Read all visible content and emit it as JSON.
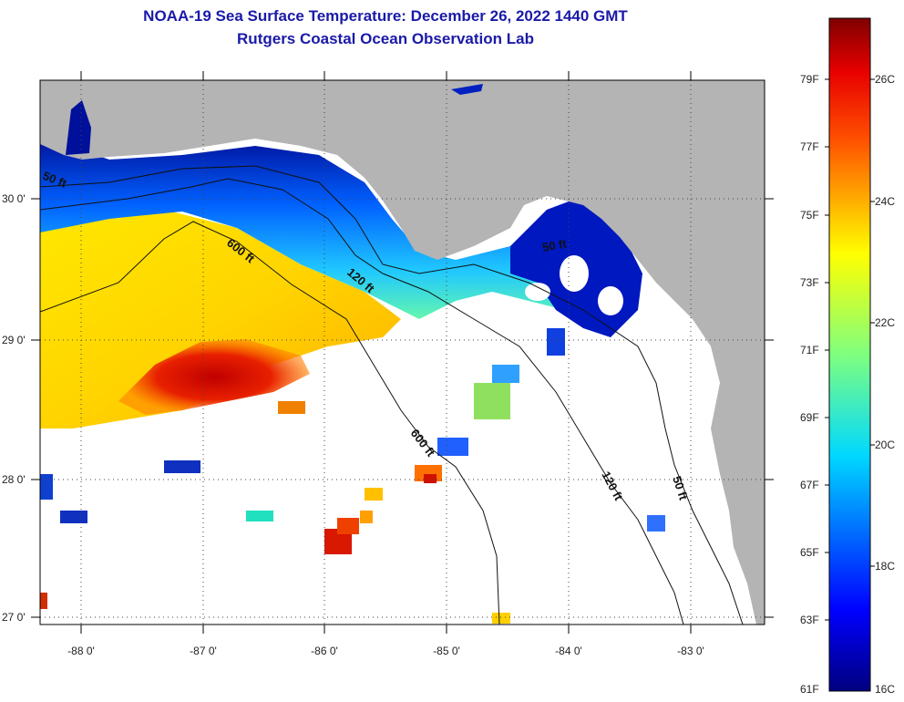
{
  "title": {
    "line1": "NOAA-19 Sea Surface Temperature:  December 26, 2022 1440 GMT",
    "line2": "Rutgers Coastal Ocean Observation Lab"
  },
  "map": {
    "lat_labels": [
      "30 0'",
      "29 0'",
      "28 0'",
      "27 0'"
    ],
    "lon_labels": [
      "-88 0'",
      "-87 0'",
      "-86 0'",
      "-85 0'",
      "-84 0'",
      "-83 0'"
    ],
    "depth_labels": {
      "d50_west": "50 ft",
      "d600_north": "600 ft",
      "d120_north": "120 ft",
      "d50_big_bend": "50 ft",
      "d600_south": "600 ft",
      "d120_south": "120 ft",
      "d50_south": "50 ft"
    }
  },
  "colorbar": {
    "fahrenheit": [
      "79F",
      "77F",
      "75F",
      "73F",
      "71F",
      "69F",
      "67F",
      "65F",
      "63F",
      "61F"
    ],
    "celsius": [
      "26C",
      "24C",
      "22C",
      "20C",
      "18C",
      "16C"
    ]
  },
  "colors": {
    "title": "#1a1aa8",
    "land": "#b4b4b4",
    "no_data": "#ffffff"
  }
}
